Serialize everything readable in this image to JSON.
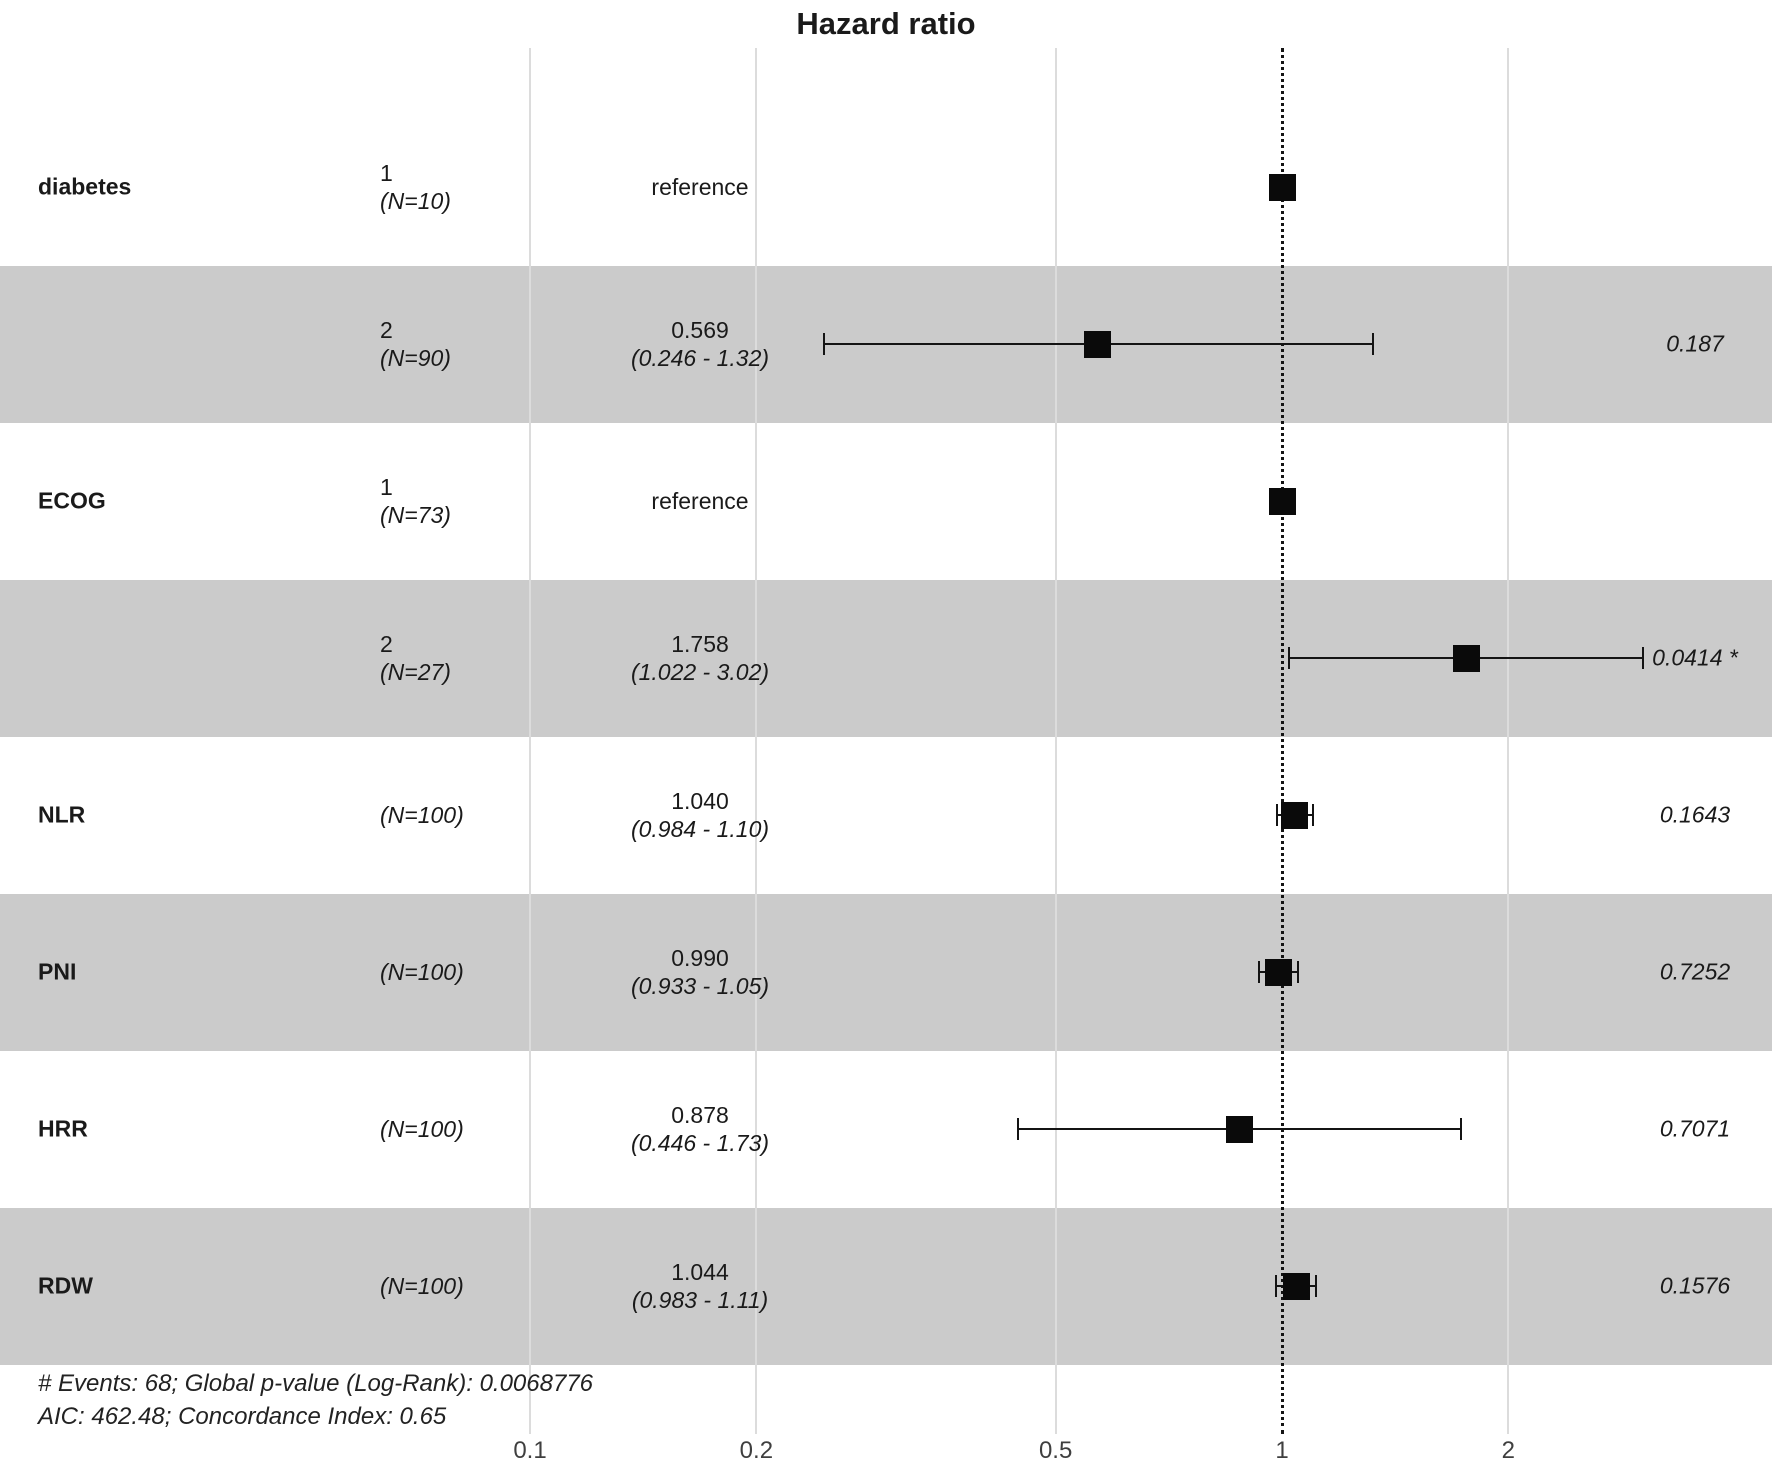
{
  "title": "Hazard ratio",
  "chart_data": {
    "type": "forest",
    "title": "Hazard ratio",
    "x_scale": "log10",
    "x_ticks": [
      0.1,
      0.2,
      0.5,
      1,
      2
    ],
    "x_tick_labels": [
      "0.1",
      "0.2",
      "0.5",
      "1",
      "2"
    ],
    "xlim": [
      0.07,
      4.5
    ],
    "reference_line": 1,
    "grid": "vertical-only",
    "rows": [
      {
        "variable": "diabetes",
        "level": "1",
        "n_label": "(N=10)",
        "estimate_label": "reference",
        "ci_label": "",
        "estimate": 1.0,
        "ci_low": null,
        "ci_high": null,
        "p_label": "",
        "shaded": false,
        "reference": true
      },
      {
        "variable": "",
        "level": "2",
        "n_label": "(N=90)",
        "estimate_label": "0.569",
        "ci_label": "(0.246 - 1.32)",
        "estimate": 0.569,
        "ci_low": 0.246,
        "ci_high": 1.32,
        "p_label": "0.187",
        "shaded": true,
        "reference": false
      },
      {
        "variable": "ECOG",
        "level": "1",
        "n_label": "(N=73)",
        "estimate_label": "reference",
        "ci_label": "",
        "estimate": 1.0,
        "ci_low": null,
        "ci_high": null,
        "p_label": "",
        "shaded": false,
        "reference": true
      },
      {
        "variable": "",
        "level": "2",
        "n_label": "(N=27)",
        "estimate_label": "1.758",
        "ci_label": "(1.022 - 3.02)",
        "estimate": 1.758,
        "ci_low": 1.022,
        "ci_high": 3.02,
        "p_label": "0.0414 *",
        "shaded": true,
        "reference": false
      },
      {
        "variable": "NLR",
        "level": "",
        "n_label": "(N=100)",
        "estimate_label": "1.040",
        "ci_label": "(0.984 - 1.10)",
        "estimate": 1.04,
        "ci_low": 0.984,
        "ci_high": 1.1,
        "p_label": "0.1643",
        "shaded": false,
        "reference": false
      },
      {
        "variable": "PNI",
        "level": "",
        "n_label": "(N=100)",
        "estimate_label": "0.990",
        "ci_label": "(0.933 - 1.05)",
        "estimate": 0.99,
        "ci_low": 0.933,
        "ci_high": 1.05,
        "p_label": "0.7252",
        "shaded": true,
        "reference": false
      },
      {
        "variable": "HRR",
        "level": "",
        "n_label": "(N=100)",
        "estimate_label": "0.878",
        "ci_label": "(0.446 - 1.73)",
        "estimate": 0.878,
        "ci_low": 0.446,
        "ci_high": 1.73,
        "p_label": "0.7071",
        "shaded": false,
        "reference": false
      },
      {
        "variable": "RDW",
        "level": "",
        "n_label": "(N=100)",
        "estimate_label": "1.044",
        "ci_label": "(0.983 - 1.11)",
        "estimate": 1.044,
        "ci_low": 0.983,
        "ci_high": 1.11,
        "p_label": "0.1576",
        "shaded": true,
        "reference": false
      }
    ],
    "footnotes": [
      "# Events: 68; Global p-value (Log-Rank): 0.0068776",
      "AIC: 462.48; Concordance Index: 0.65"
    ]
  },
  "colors": {
    "band": "#cbcbcb",
    "gridline": "#dcdcdc",
    "marker": "#0a0a0a",
    "reference_line": "#141414",
    "text": "#1a1a1a",
    "tick_text": "#3f3f3f"
  }
}
